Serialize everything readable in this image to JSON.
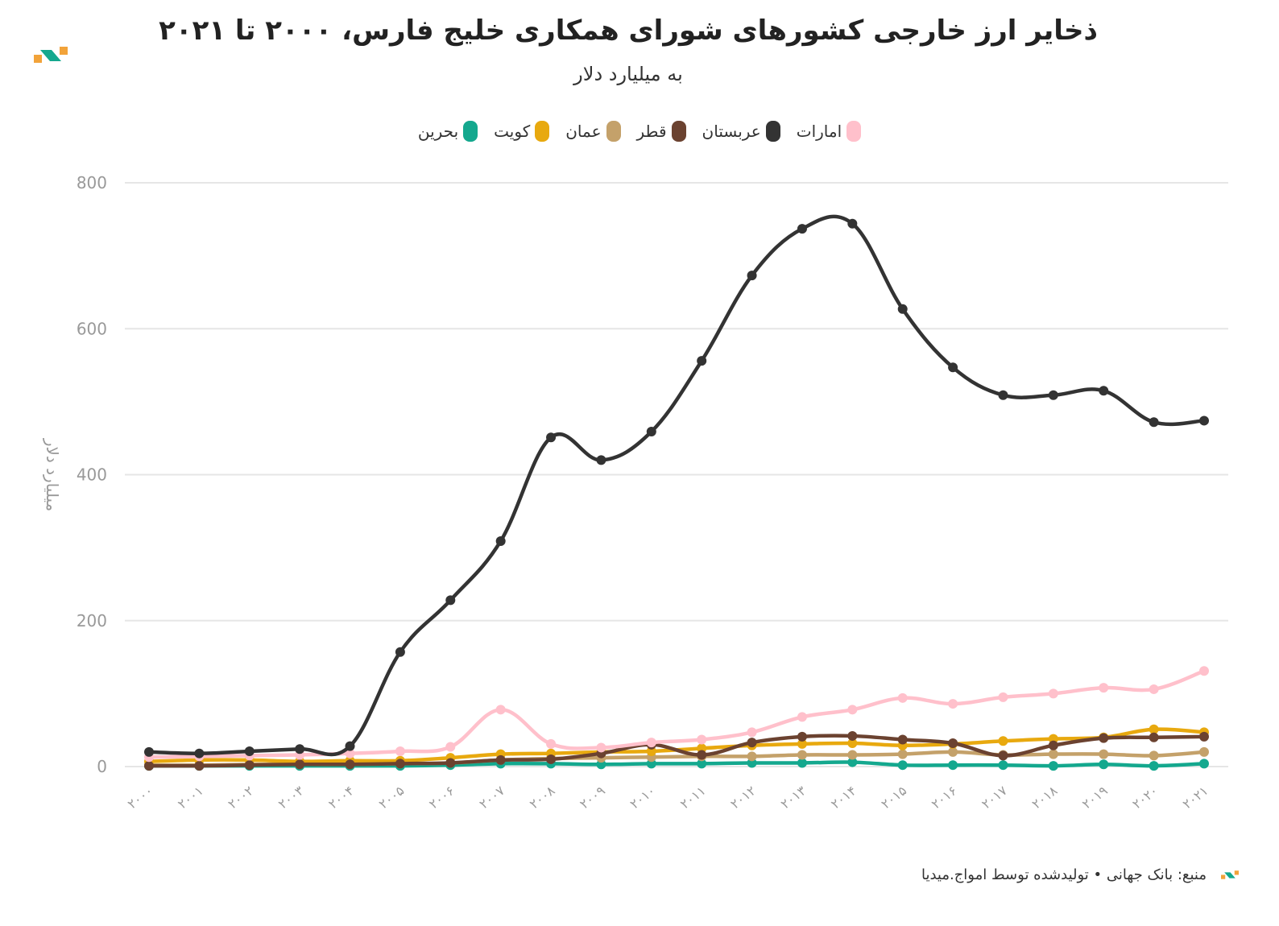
{
  "header": {
    "title": "ذخایر ارز خارجی کشورهای شورای همکاری خلیج فارس، ۲۰۰۰ تا ۲۰۲۱",
    "subtitle": "به میلیارد دلار"
  },
  "logo": {
    "icon": "brand-logo-icon"
  },
  "footer": {
    "text": "منبع: بانک جهانی • تولیدشده توسط امواج.میدیا"
  },
  "chart_data": {
    "type": "line",
    "ylabel": "میلیارد دلار",
    "ylim": [
      0,
      800
    ],
    "yticks": [
      "0",
      "200",
      "400",
      "600",
      "800"
    ],
    "grid": true,
    "legend_position": "top-center",
    "x": [
      "۲۰۰۰",
      "۲۰۰۱",
      "۲۰۰۲",
      "۲۰۰۳",
      "۲۰۰۴",
      "۲۰۰۵",
      "۲۰۰۶",
      "۲۰۰۷",
      "۲۰۰۸",
      "۲۰۰۹",
      "۲۰۱۰",
      "۲۰۱۱",
      "۲۰۱۲",
      "۲۰۱۳",
      "۲۰۱۴",
      "۲۰۱۵",
      "۲۰۱۶",
      "۲۰۱۷",
      "۲۰۱۸",
      "۲۰۱۹",
      "۲۰۲۰",
      "۲۰۲۱"
    ],
    "series": [
      {
        "name": "امارات",
        "color": "#ffc0cb",
        "values": [
          13,
          14,
          15,
          16,
          18,
          21,
          27,
          78,
          31,
          26,
          33,
          37,
          47,
          68,
          78,
          94,
          86,
          95,
          100,
          108,
          106,
          131
        ]
      },
      {
        "name": "عربستان",
        "color": "#333333",
        "values": [
          20,
          18,
          21,
          24,
          28,
          157,
          228,
          309,
          451,
          420,
          459,
          556,
          673,
          737,
          744,
          627,
          547,
          509,
          509,
          515,
          472,
          474
        ]
      },
      {
        "name": "قطر",
        "color": "#6b4230",
        "values": [
          1,
          1,
          2,
          3,
          3,
          4,
          5,
          9,
          10,
          18,
          30,
          16,
          33,
          41,
          42,
          37,
          32,
          15,
          29,
          39,
          40,
          41
        ]
      },
      {
        "name": "عمان",
        "color": "#c4a16a",
        "values": [
          2,
          2,
          3,
          3,
          3,
          4,
          5,
          9,
          11,
          12,
          13,
          14,
          14,
          16,
          16,
          17,
          20,
          16,
          17,
          17,
          15,
          20
        ]
      },
      {
        "name": "کویت",
        "color": "#e8a90f",
        "values": [
          7,
          9,
          9,
          7,
          8,
          8,
          12,
          17,
          18,
          20,
          21,
          25,
          29,
          31,
          32,
          29,
          31,
          35,
          38,
          40,
          51,
          47
        ]
      },
      {
        "name": "بحرین",
        "color": "#14a88e",
        "values": [
          1,
          1,
          1,
          1,
          1,
          1,
          2,
          4,
          4,
          3,
          4,
          4,
          5,
          5,
          6,
          2,
          2,
          2,
          1,
          3,
          1,
          4
        ]
      }
    ]
  }
}
